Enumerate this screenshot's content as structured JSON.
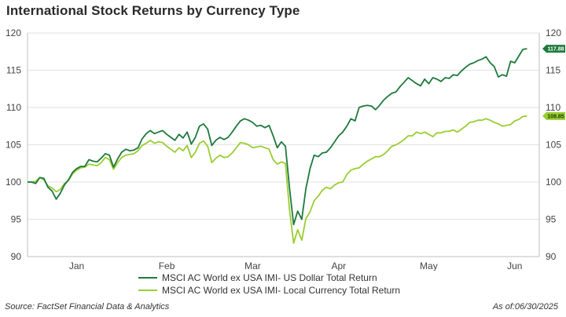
{
  "title": "International Stock Returns by Currency Type",
  "footer": {
    "source": "Source: FactSet Financial Data & Analytics",
    "asof": "As of:06/30/2025"
  },
  "colors": {
    "usd": "#1e7a3c",
    "local": "#9acd32"
  },
  "chart_data": {
    "type": "line",
    "title": "International Stock Returns by Currency Type",
    "xlabel": "",
    "ylabel": "",
    "ylim": [
      90,
      120
    ],
    "yticks": [
      90,
      95,
      100,
      105,
      110,
      115,
      120
    ],
    "xlim": [
      0,
      125
    ],
    "months": [
      {
        "label": "Jan",
        "x": 12
      },
      {
        "label": "Feb",
        "x": 34
      },
      {
        "label": "Mar",
        "x": 55
      },
      {
        "label": "Apr",
        "x": 76
      },
      {
        "label": "May",
        "x": 98
      },
      {
        "label": "Jun",
        "x": 119
      }
    ],
    "grid": true,
    "legend_position": "bottom",
    "end_labels": [
      "117.88",
      "108.85"
    ],
    "series": [
      {
        "name": "MSCI AC World ex USA IMI- US Dollar Total Return",
        "key": "usd",
        "values": [
          100,
          100,
          99.8,
          100.6,
          100.5,
          99.3,
          98.8,
          97.7,
          98.5,
          99.6,
          100.3,
          101.3,
          101.8,
          102.1,
          102.1,
          103.0,
          102.8,
          102.7,
          103.2,
          103.8,
          103.6,
          102.0,
          103.1,
          104.0,
          104.4,
          104.2,
          104.3,
          104.6,
          105.8,
          106.5,
          106.9,
          106.5,
          106.7,
          106.9,
          106.4,
          106.0,
          105.6,
          106.4,
          105.9,
          106.7,
          105.1,
          106.0,
          107.5,
          107.8,
          107.1,
          104.9,
          105.6,
          106.0,
          105.7,
          106.0,
          106.7,
          107.5,
          108.2,
          108.5,
          108.3,
          108.0,
          107.5,
          107.6,
          107.3,
          107.6,
          106.2,
          104.6,
          105.4,
          104.8,
          99.2,
          94.3,
          96.1,
          95.0,
          99.1,
          101.8,
          103.6,
          103.4,
          103.9,
          104.0,
          104.6,
          105.4,
          106.2,
          106.7,
          107.5,
          108.5,
          108.2,
          110.0,
          110.2,
          110.3,
          110.2,
          109.7,
          110.3,
          111.0,
          111.5,
          111.9,
          112.1,
          112.8,
          113.4,
          114.0,
          113.6,
          113.2,
          112.9,
          113.8,
          113.2,
          114.0,
          113.8,
          113.5,
          114.0,
          113.9,
          114.4,
          114.3,
          114.9,
          115.4,
          115.8,
          116.0,
          116.3,
          116.5,
          116.8,
          116.0,
          115.5,
          114.1,
          114.4,
          114.2,
          116.2,
          116.0,
          116.9,
          117.8,
          117.88
        ]
      },
      {
        "name": "MSCI AC World ex USA IMI- Local Currency Total Return",
        "key": "local",
        "values": [
          100,
          100,
          100.1,
          100.6,
          100.3,
          99.5,
          99.2,
          98.7,
          99.0,
          99.8,
          100.2,
          101.1,
          101.6,
          101.9,
          102.0,
          102.4,
          102.3,
          102.2,
          102.6,
          103.3,
          103.0,
          101.7,
          102.6,
          103.3,
          103.6,
          103.7,
          103.8,
          104.2,
          104.9,
          105.2,
          105.6,
          105.2,
          105.4,
          105.3,
          104.8,
          104.4,
          104.0,
          104.6,
          104.2,
          104.9,
          103.3,
          104.0,
          105.2,
          105.5,
          104.8,
          102.6,
          103.2,
          103.6,
          103.3,
          103.4,
          103.9,
          104.6,
          105.3,
          105.2,
          105.0,
          104.6,
          104.7,
          104.8,
          104.6,
          104.4,
          103.0,
          102.4,
          102.7,
          102.5,
          96.3,
          91.8,
          93.6,
          92.2,
          95.1,
          96.0,
          97.5,
          98.1,
          98.9,
          99.3,
          99.1,
          99.6,
          99.9,
          100.0,
          101.0,
          101.6,
          101.8,
          101.9,
          102.4,
          102.8,
          103.1,
          103.4,
          103.4,
          103.7,
          104.2,
          104.8,
          105.0,
          105.3,
          105.7,
          106.2,
          106.2,
          106.7,
          106.5,
          106.7,
          106.4,
          106.1,
          106.6,
          106.6,
          106.8,
          106.8,
          107.0,
          106.7,
          107.1,
          107.5,
          108.0,
          108.1,
          108.3,
          108.3,
          108.5,
          108.3,
          108.0,
          107.8,
          107.5,
          107.6,
          107.7,
          108.2,
          108.4,
          108.8,
          108.85
        ]
      }
    ]
  }
}
